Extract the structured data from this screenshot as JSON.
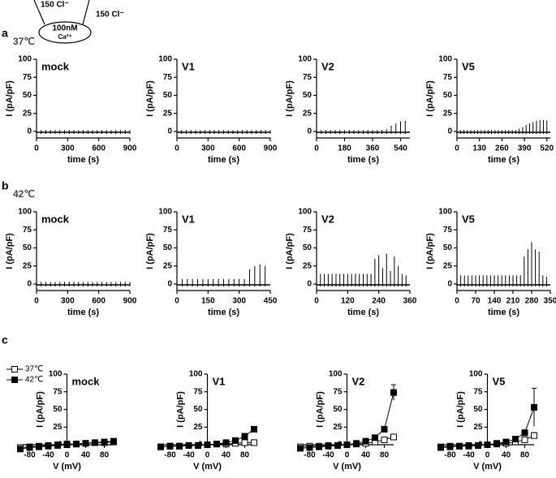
{
  "figure": {
    "diagram": {
      "left_label": "150 Cl⁻",
      "right_label": "150 Cl⁻",
      "inside_top": "100nM",
      "inside_bottom": "Ca²⁺"
    },
    "panels": [
      {
        "letter": "a",
        "condition": "37℃"
      },
      {
        "letter": "b",
        "condition": "42℃"
      },
      {
        "letter": "c"
      }
    ]
  },
  "chart_data": [
    {
      "type": "spike",
      "title": "mock",
      "ylabel": "I (pA/pF)",
      "xlabel": "time (s)",
      "xlim": [
        0,
        900
      ],
      "xticks": [
        0,
        300,
        600,
        900
      ],
      "ylim": [
        -9,
        100
      ],
      "yticks": [
        0,
        25,
        50,
        75,
        100
      ],
      "color": "#000000",
      "x": [
        0,
        45,
        90,
        135,
        180,
        225,
        270,
        315,
        360,
        405,
        450,
        495,
        540,
        585,
        630,
        675,
        720,
        765,
        810,
        855,
        900
      ],
      "values": [
        2,
        2,
        2,
        2,
        2,
        2,
        2,
        2,
        2,
        2,
        2,
        2,
        2,
        2,
        2,
        2,
        2,
        2,
        2,
        2,
        2
      ]
    },
    {
      "type": "spike",
      "title": "V1",
      "ylabel": "I (pA/pF)",
      "xlabel": "time (s)",
      "xlim": [
        0,
        900
      ],
      "xticks": [
        0,
        300,
        600,
        900
      ],
      "ylim": [
        -9,
        100
      ],
      "yticks": [
        0,
        25,
        50,
        75,
        100
      ],
      "color": "#000000",
      "x": [
        0,
        45,
        90,
        135,
        180,
        225,
        270,
        315,
        360,
        405,
        450,
        495,
        540,
        585,
        630,
        675,
        720,
        765,
        810,
        855,
        900
      ],
      "values": [
        3,
        2,
        2,
        2,
        2,
        2,
        2,
        2,
        2,
        2,
        2,
        2,
        2,
        2,
        2,
        2,
        2,
        2,
        2,
        2,
        2
      ]
    },
    {
      "type": "spike",
      "title": "V2",
      "ylabel": "I (pA/pF)",
      "xlabel": "time (s)",
      "xlim": [
        0,
        600
      ],
      "xticks": [
        0,
        180,
        360,
        540
      ],
      "ylim": [
        -9,
        100
      ],
      "yticks": [
        0,
        25,
        50,
        75,
        100
      ],
      "color": "#000000",
      "x": [
        0,
        30,
        60,
        90,
        120,
        150,
        180,
        210,
        240,
        270,
        300,
        330,
        360,
        390,
        420,
        450,
        480,
        510,
        540,
        570
      ],
      "values": [
        2,
        2,
        2,
        2,
        2,
        2,
        2,
        2,
        2,
        2,
        2,
        2,
        2,
        2,
        2,
        3,
        8,
        11,
        14,
        15
      ]
    },
    {
      "type": "spike",
      "title": "V5",
      "ylabel": "I (pA/pF)",
      "xlabel": "time (s)",
      "xlim": [
        0,
        540
      ],
      "xticks": [
        0,
        130,
        260,
        390,
        520
      ],
      "ylim": [
        -9,
        100
      ],
      "yticks": [
        0,
        25,
        50,
        75,
        100
      ],
      "color": "#000000",
      "x": [
        0,
        20,
        40,
        60,
        80,
        100,
        120,
        140,
        160,
        180,
        200,
        220,
        240,
        260,
        280,
        300,
        320,
        340,
        360,
        380,
        400,
        420,
        440,
        460,
        480,
        500,
        520
      ],
      "values": [
        2,
        2,
        2,
        2,
        2,
        2,
        2,
        2,
        2,
        2,
        2,
        2,
        2,
        2,
        2,
        2,
        2,
        2,
        4,
        6,
        9,
        11,
        13,
        15,
        16,
        16,
        15
      ]
    },
    {
      "type": "spike",
      "title": "mock",
      "ylabel": "I (pA/pF)",
      "xlabel": "time (s)",
      "xlim": [
        0,
        900
      ],
      "xticks": [
        0,
        300,
        600,
        900
      ],
      "ylim": [
        -9,
        100
      ],
      "yticks": [
        0,
        25,
        50,
        75,
        100
      ],
      "color": "#000000",
      "x": [
        0,
        45,
        90,
        135,
        180,
        225,
        270,
        315,
        360,
        405,
        450,
        495,
        540,
        585,
        630,
        675,
        720,
        765,
        810,
        855,
        900
      ],
      "values": [
        3,
        3,
        3,
        3,
        3,
        3,
        3,
        3,
        3,
        3,
        3,
        3,
        3,
        3,
        3,
        3,
        3,
        3,
        3,
        3,
        3
      ]
    },
    {
      "type": "spike",
      "title": "V1",
      "ylabel": "I (pA/pF)",
      "xlabel": "time (s)",
      "xlim": [
        0,
        450
      ],
      "xticks": [
        0,
        150,
        300,
        450
      ],
      "ylim": [
        -9,
        100
      ],
      "yticks": [
        0,
        25,
        50,
        75,
        100
      ],
      "color": "#000000",
      "x": [
        0,
        25,
        50,
        75,
        100,
        125,
        150,
        175,
        200,
        225,
        250,
        275,
        300,
        325,
        350,
        375,
        400,
        425
      ],
      "values": [
        12,
        7,
        7,
        7,
        7,
        7,
        7,
        7,
        7,
        7,
        7,
        7,
        7,
        7,
        20,
        25,
        27,
        25
      ]
    },
    {
      "type": "spike",
      "title": "V2",
      "ylabel": "I (pA/pF)",
      "xlabel": "time (s)",
      "xlim": [
        0,
        360
      ],
      "xticks": [
        0,
        120,
        240,
        360
      ],
      "ylim": [
        -9,
        100
      ],
      "yticks": [
        0,
        25,
        50,
        75,
        100
      ],
      "color": "#000000",
      "x": [
        0,
        15,
        30,
        45,
        60,
        75,
        90,
        105,
        120,
        135,
        150,
        165,
        180,
        195,
        210,
        225,
        240,
        255,
        270,
        285,
        300,
        315,
        330,
        345
      ],
      "values": [
        16,
        14,
        14,
        14,
        14,
        14,
        14,
        14,
        14,
        14,
        14,
        14,
        14,
        14,
        14,
        35,
        40,
        22,
        42,
        18,
        38,
        25,
        14,
        12
      ]
    },
    {
      "type": "spike",
      "title": "V5",
      "ylabel": "I (pA/pF)",
      "xlabel": "time (s)",
      "xlim": [
        0,
        350
      ],
      "xticks": [
        0,
        70,
        140,
        210,
        280,
        350
      ],
      "ylim": [
        -9,
        100
      ],
      "yticks": [
        0,
        25,
        50,
        75,
        100
      ],
      "color": "#000000",
      "x": [
        0,
        14,
        28,
        42,
        56,
        70,
        84,
        98,
        112,
        126,
        140,
        154,
        168,
        182,
        196,
        210,
        224,
        238,
        252,
        266,
        280,
        294,
        308,
        322,
        336
      ],
      "values": [
        12,
        12,
        12,
        12,
        12,
        12,
        12,
        12,
        12,
        12,
        12,
        12,
        12,
        12,
        12,
        12,
        12,
        12,
        38,
        48,
        58,
        48,
        45,
        12,
        10
      ]
    },
    {
      "type": "line",
      "title": "mock",
      "ylabel": "I (pA/pF)",
      "xlabel": "V (mV)",
      "xlim": [
        -100,
        100
      ],
      "xticks": [
        -80,
        -40,
        0,
        40,
        80
      ],
      "ylim": [
        -8,
        100
      ],
      "yticks": [
        0,
        25,
        50,
        75,
        100
      ],
      "x": [
        -100,
        -80,
        -60,
        -40,
        -20,
        0,
        20,
        40,
        60,
        80,
        100
      ],
      "series": [
        {
          "name": "37℃",
          "color": "#000000",
          "filled": false,
          "values": [
            -4,
            -3,
            -2,
            -1,
            0,
            1,
            1,
            2,
            3,
            3,
            4
          ],
          "errors": [
            null,
            null,
            null,
            null,
            null,
            null,
            null,
            null,
            null,
            null,
            null
          ]
        },
        {
          "name": "42℃",
          "color": "#000000",
          "filled": true,
          "values": [
            -6,
            -4,
            -3,
            -2,
            -1,
            0,
            1,
            2,
            3,
            4,
            5
          ],
          "errors": [
            null,
            null,
            null,
            null,
            null,
            null,
            null,
            null,
            null,
            null,
            2
          ]
        }
      ]
    },
    {
      "type": "line",
      "title": "V1",
      "ylabel": "I (pA/pF)",
      "xlabel": "V (mV)",
      "xlim": [
        -100,
        100
      ],
      "xticks": [
        -80,
        -40,
        0,
        40,
        80
      ],
      "ylim": [
        -8,
        100
      ],
      "yticks": [
        0,
        25,
        50,
        75,
        100
      ],
      "x": [
        -100,
        -80,
        -60,
        -40,
        -20,
        0,
        20,
        40,
        60,
        80,
        100
      ],
      "series": [
        {
          "name": "37℃",
          "color": "#000000",
          "filled": false,
          "values": [
            -3,
            -2,
            -2,
            -1,
            -1,
            0,
            1,
            1,
            2,
            3,
            3
          ],
          "errors": [
            null,
            null,
            null,
            null,
            null,
            null,
            null,
            null,
            null,
            null,
            null
          ]
        },
        {
          "name": "42℃",
          "color": "#000000",
          "filled": true,
          "values": [
            -3,
            -2,
            -2,
            -1,
            -1,
            0,
            1,
            3,
            6,
            12,
            22
          ],
          "errors": [
            null,
            null,
            null,
            null,
            null,
            null,
            null,
            null,
            null,
            2,
            3
          ]
        }
      ]
    },
    {
      "type": "line",
      "title": "V2",
      "ylabel": "I (pA/pF)",
      "xlabel": "V (mV)",
      "xlim": [
        -100,
        100
      ],
      "xticks": [
        -80,
        -40,
        0,
        40,
        80
      ],
      "ylim": [
        -8,
        100
      ],
      "yticks": [
        0,
        25,
        50,
        75,
        100
      ],
      "x": [
        -100,
        -80,
        -60,
        -40,
        -20,
        0,
        20,
        40,
        60,
        80,
        100
      ],
      "series": [
        {
          "name": "37℃",
          "color": "#000000",
          "filled": false,
          "values": [
            -3,
            -2,
            -2,
            -1,
            -1,
            0,
            1,
            2,
            4,
            7,
            11
          ],
          "errors": [
            null,
            null,
            null,
            null,
            null,
            null,
            null,
            null,
            null,
            null,
            2
          ]
        },
        {
          "name": "42℃",
          "color": "#000000",
          "filled": true,
          "values": [
            -5,
            -4,
            -3,
            -2,
            -1,
            0,
            2,
            5,
            10,
            22,
            74
          ],
          "errors": [
            null,
            null,
            null,
            null,
            null,
            null,
            null,
            null,
            null,
            null,
            11
          ]
        }
      ]
    },
    {
      "type": "line",
      "title": "V5",
      "ylabel": "I (pA/pF)",
      "xlabel": "V (mV)",
      "xlim": [
        -100,
        100
      ],
      "xticks": [
        -80,
        -40,
        0,
        40,
        80
      ],
      "ylim": [
        -8,
        100
      ],
      "yticks": [
        0,
        25,
        50,
        75,
        100
      ],
      "x": [
        -100,
        -80,
        -60,
        -40,
        -20,
        0,
        20,
        40,
        60,
        80,
        100
      ],
      "series": [
        {
          "name": "37℃",
          "color": "#000000",
          "filled": false,
          "values": [
            -3,
            -2,
            -2,
            -1,
            -1,
            0,
            1,
            2,
            4,
            7,
            13
          ],
          "errors": [
            null,
            null,
            null,
            null,
            null,
            null,
            null,
            null,
            null,
            null,
            4
          ]
        },
        {
          "name": "42℃",
          "color": "#000000",
          "filled": true,
          "values": [
            -4,
            -3,
            -2,
            -2,
            -1,
            0,
            2,
            4,
            8,
            17,
            53
          ],
          "errors": [
            null,
            null,
            null,
            null,
            null,
            null,
            null,
            null,
            null,
            4,
            27
          ]
        }
      ]
    }
  ]
}
